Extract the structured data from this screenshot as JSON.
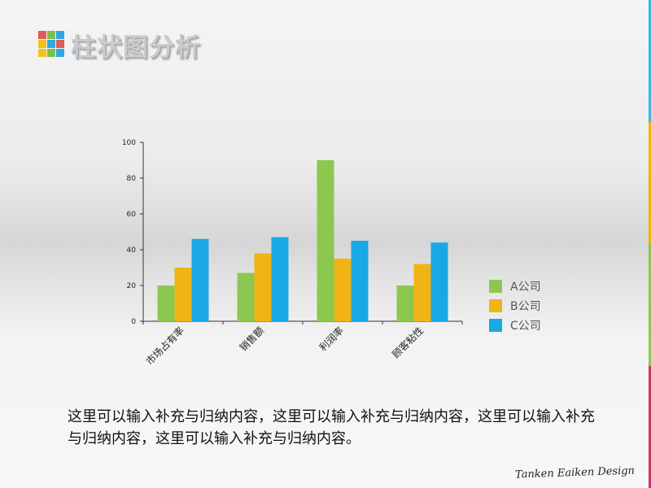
{
  "slide": {
    "title": "柱状图分析",
    "body_text": "这里可以输入补充与归纳内容，这里可以输入补充与归纳内容，这里可以输入补充与归纳内容，这里可以输入补充与归纳内容。",
    "signature": "Tanken Eaiken Design",
    "accent_colors": [
      "#3cb4e6",
      "#f0b400",
      "#8cc850",
      "#c83c64"
    ]
  },
  "logo": {
    "icon": "color-grid-logo-icon",
    "colors": [
      "#e05a5a",
      "#7cc04a",
      "#2ea8e0",
      "#f2c21a",
      "#2ea8e0",
      "#e05a5a",
      "#f2c21a",
      "#7cc04a",
      "#2ea8e0"
    ]
  },
  "chart_data": {
    "type": "bar",
    "title": "",
    "xlabel": "",
    "ylabel": "",
    "categories": [
      "市场占有率",
      "销售额",
      "利润率",
      "顾客粘性"
    ],
    "series": [
      {
        "name": "A公司",
        "color": "#8cc850",
        "values": [
          20,
          27,
          90,
          20
        ]
      },
      {
        "name": "B公司",
        "color": "#f0b414",
        "values": [
          30,
          38,
          35,
          32
        ]
      },
      {
        "name": "C公司",
        "color": "#19a8e4",
        "values": [
          46,
          47,
          45,
          44
        ]
      }
    ],
    "ylim": [
      0,
      100
    ],
    "yticks": [
      0,
      20,
      40,
      60,
      80,
      100
    ],
    "grid": false,
    "legend_position": "right"
  }
}
